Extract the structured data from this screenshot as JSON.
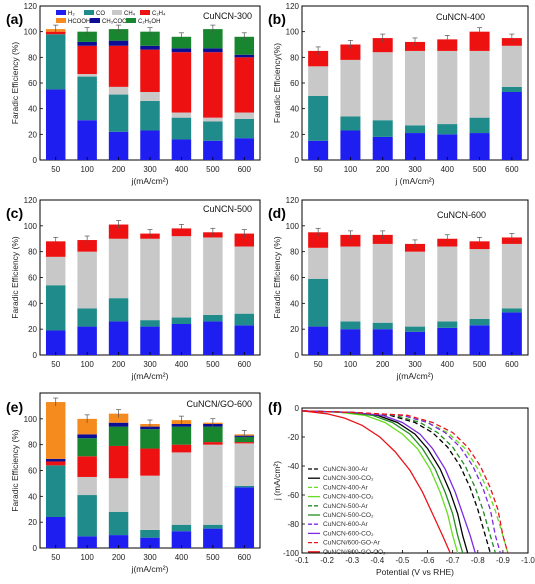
{
  "colors": {
    "H2": "#1e1ef0",
    "CO": "#1f8b8b",
    "CH4": "#c8c8c8",
    "C2H4": "#ee1111",
    "HCOOH": "#f58a1e",
    "CH3COOH": "#0d0d96",
    "C2H5OH": "#18862e"
  },
  "legend_products": [
    {
      "key": "H2",
      "label": "H₂"
    },
    {
      "key": "CO",
      "label": "CO"
    },
    {
      "key": "CH4",
      "label": "CH₄"
    },
    {
      "key": "C2H4",
      "label": "C₂H₄"
    },
    {
      "key": "HCOOH",
      "label": "HCOOH"
    },
    {
      "key": "CH3COOH",
      "label": "CH₃COOH"
    },
    {
      "key": "C2H5OH",
      "label": "C₂H₅OH"
    }
  ],
  "chart_data": [
    {
      "panel": "(a)",
      "title": "CuNCN-300",
      "type": "bar",
      "stacked": true,
      "categories": [
        "50",
        "100",
        "200",
        "300",
        "400",
        "500",
        "600"
      ],
      "xlabel": "j(mA/cm²)",
      "ylabel": "Faradic Efficiency (%)",
      "ylim": [
        0,
        120
      ],
      "yticks": [
        0,
        20,
        40,
        60,
        80,
        100,
        120
      ],
      "series": [
        {
          "name": "H₂",
          "key": "H2",
          "values": [
            55,
            31,
            22,
            23,
            16,
            15,
            17
          ]
        },
        {
          "name": "CO",
          "key": "CO",
          "values": [
            43,
            34,
            29,
            23,
            17,
            15,
            15
          ]
        },
        {
          "name": "CH₄",
          "key": "CH4",
          "values": [
            0,
            2,
            6,
            7,
            4,
            3,
            5
          ]
        },
        {
          "name": "C₂H₄",
          "key": "C2H4",
          "values": [
            2,
            22,
            32,
            33,
            47,
            51,
            43
          ]
        },
        {
          "name": "HCOOH",
          "key": "HCOOH",
          "values": [
            2,
            0,
            0,
            0,
            0,
            0,
            0
          ]
        },
        {
          "name": "CH₃COOH",
          "key": "CH3COOH",
          "values": [
            0,
            3,
            4,
            3,
            3,
            3,
            2
          ]
        },
        {
          "name": "C₂H₅OH",
          "key": "C2H5OH",
          "values": [
            0,
            8,
            9,
            11,
            9,
            15,
            14
          ]
        }
      ]
    },
    {
      "panel": "(b)",
      "title": "CuNCN-400",
      "type": "bar",
      "stacked": true,
      "categories": [
        "50",
        "100",
        "200",
        "300",
        "400",
        "500",
        "600"
      ],
      "xlabel": "j (mA/cm²)",
      "ylabel": "Faradic Efficiency(%)",
      "ylim": [
        0,
        120
      ],
      "yticks": [
        0,
        20,
        40,
        60,
        80,
        100,
        120
      ],
      "series": [
        {
          "name": "H₂",
          "key": "H2",
          "values": [
            15,
            23,
            18,
            21,
            20,
            21,
            53
          ]
        },
        {
          "name": "CO",
          "key": "CO",
          "values": [
            35,
            11,
            13,
            6,
            8,
            12,
            4
          ]
        },
        {
          "name": "CH₄",
          "key": "CH4",
          "values": [
            23,
            44,
            53,
            58,
            57,
            52,
            32
          ]
        },
        {
          "name": "C₂H₄",
          "key": "C2H4",
          "values": [
            12,
            12,
            11,
            7,
            9,
            15,
            6
          ]
        }
      ]
    },
    {
      "panel": "(c)",
      "title": "CuNCN-500",
      "type": "bar",
      "stacked": true,
      "categories": [
        "50",
        "100",
        "200",
        "300",
        "400",
        "500",
        "600"
      ],
      "xlabel": "j(mA/cm²)",
      "ylabel": "Faradic Efficiency (%)",
      "ylim": [
        0,
        120
      ],
      "yticks": [
        0,
        20,
        40,
        60,
        80,
        100,
        120
      ],
      "series": [
        {
          "name": "H₂",
          "key": "H2",
          "values": [
            19,
            22,
            26,
            22,
            24,
            26,
            23
          ]
        },
        {
          "name": "CO",
          "key": "CO",
          "values": [
            35,
            14,
            18,
            5,
            5,
            5,
            9
          ]
        },
        {
          "name": "CH₄",
          "key": "CH4",
          "values": [
            22,
            44,
            46,
            63,
            63,
            60,
            52
          ]
        },
        {
          "name": "C₂H₄",
          "key": "C2H4",
          "values": [
            12,
            9,
            11,
            4,
            6,
            4,
            10
          ]
        }
      ]
    },
    {
      "panel": "(d)",
      "title": "CuNCN-600",
      "type": "bar",
      "stacked": true,
      "categories": [
        "50",
        "100",
        "200",
        "300",
        "400",
        "500",
        "600"
      ],
      "xlabel": "j(mA/cm²)",
      "ylabel": "Faradic Efficiency (%)",
      "ylim": [
        0,
        120
      ],
      "yticks": [
        0,
        20,
        40,
        60,
        80,
        100,
        120
      ],
      "series": [
        {
          "name": "H₂",
          "key": "H2",
          "values": [
            22,
            20,
            20,
            18,
            21,
            23,
            33
          ]
        },
        {
          "name": "CO",
          "key": "CO",
          "values": [
            37,
            6,
            5,
            4,
            5,
            5,
            3
          ]
        },
        {
          "name": "CH₄",
          "key": "CH4",
          "values": [
            24,
            58,
            61,
            58,
            58,
            54,
            50
          ]
        },
        {
          "name": "C₂H₄",
          "key": "C2H4",
          "values": [
            12,
            9,
            7,
            6,
            6,
            6,
            5
          ]
        }
      ]
    },
    {
      "panel": "(e)",
      "title": "CuNCN/GO-600",
      "type": "bar",
      "stacked": true,
      "categories": [
        "50",
        "100",
        "200",
        "300",
        "400",
        "500",
        "600"
      ],
      "xlabel": "j(mA/cm²)",
      "ylabel": "Faradic Efficiency (%)",
      "ylim": [
        0,
        120
      ],
      "yticks": [
        0,
        20,
        40,
        60,
        80,
        100
      ],
      "series": [
        {
          "name": "H₂",
          "key": "H2",
          "values": [
            24,
            9,
            10,
            8,
            13,
            15,
            47
          ]
        },
        {
          "name": "CO",
          "key": "CO",
          "values": [
            40,
            32,
            18,
            6,
            5,
            3,
            1
          ]
        },
        {
          "name": "CH₄",
          "key": "CH4",
          "values": [
            0,
            14,
            26,
            42,
            56,
            62,
            33
          ]
        },
        {
          "name": "C₂H₄",
          "key": "C2H4",
          "values": [
            3,
            16,
            25,
            21,
            6,
            2,
            1
          ]
        },
        {
          "name": "C₂H₅OH",
          "key": "C2H5OH",
          "values": [
            0,
            14,
            15,
            15,
            14,
            12,
            4
          ]
        },
        {
          "name": "CH₃COOH",
          "key": "CH3COOH",
          "values": [
            2,
            3,
            3,
            2,
            2,
            2,
            1
          ]
        },
        {
          "name": "HCOOH",
          "key": "HCOOH",
          "values": [
            44,
            12,
            7,
            2,
            3,
            1,
            1
          ]
        }
      ]
    },
    {
      "panel": "(f)",
      "type": "line",
      "xlabel": "Potential (V vs RHE)",
      "ylabel": "j (mA/cm²)",
      "xlim": [
        -0.1,
        -1.0
      ],
      "ylim": [
        -100,
        0
      ],
      "xticks": [
        -0.1,
        -0.2,
        -0.3,
        -0.4,
        -0.5,
        -0.6,
        -0.7,
        -0.8,
        -0.9,
        -1.0
      ],
      "xtick_labels": [
        "-0.1",
        "-0.2",
        "-0.3",
        "-0.4",
        "-0.5",
        "-0.6",
        "-0.7",
        "-0.8",
        "-0.9",
        "-1.0"
      ],
      "yticks": [
        0,
        -20,
        -40,
        -60,
        -80,
        -100
      ],
      "series": [
        {
          "name": "CuNCN-300-Ar",
          "color": "#000000",
          "dash": true,
          "x": [
            -0.1,
            -0.3,
            -0.45,
            -0.55,
            -0.62,
            -0.68,
            -0.73,
            -0.77,
            -0.8,
            -0.83,
            -0.85
          ],
          "y": [
            -2,
            -3,
            -5,
            -10,
            -17,
            -27,
            -40,
            -55,
            -70,
            -88,
            -100
          ]
        },
        {
          "name": "CuNCN-300-CO₂",
          "color": "#000000",
          "dash": false,
          "x": [
            -0.1,
            -0.3,
            -0.4,
            -0.48,
            -0.55,
            -0.6,
            -0.65,
            -0.69,
            -0.72,
            -0.74,
            -0.76
          ],
          "y": [
            -2,
            -3,
            -5,
            -10,
            -18,
            -28,
            -42,
            -58,
            -73,
            -88,
            -100
          ]
        },
        {
          "name": "CuNCN-400-Ar",
          "color": "#66dd22",
          "dash": true,
          "x": [
            -0.1,
            -0.3,
            -0.5,
            -0.6,
            -0.68,
            -0.75,
            -0.8,
            -0.84,
            -0.87,
            -0.9,
            -0.92
          ],
          "y": [
            -2,
            -3,
            -5,
            -10,
            -17,
            -28,
            -42,
            -57,
            -71,
            -88,
            -100
          ]
        },
        {
          "name": "CuNCN-400-CO₂",
          "color": "#66dd22",
          "dash": false,
          "x": [
            -0.1,
            -0.25,
            -0.35,
            -0.43,
            -0.5,
            -0.56,
            -0.61,
            -0.65,
            -0.68,
            -0.7,
            -0.72
          ],
          "y": [
            -2,
            -3,
            -5,
            -10,
            -18,
            -28,
            -42,
            -58,
            -73,
            -88,
            -100
          ]
        },
        {
          "name": "CuNCN-500-Ar",
          "color": "#228b22",
          "dash": true,
          "x": [
            -0.1,
            -0.3,
            -0.47,
            -0.57,
            -0.64,
            -0.7,
            -0.75,
            -0.79,
            -0.82,
            -0.85,
            -0.87
          ],
          "y": [
            -2,
            -3,
            -5,
            -10,
            -17,
            -27,
            -40,
            -55,
            -70,
            -88,
            -100
          ]
        },
        {
          "name": "CuNCN-500-CO₂",
          "color": "#228b22",
          "dash": false,
          "x": [
            -0.1,
            -0.28,
            -0.38,
            -0.46,
            -0.53,
            -0.58,
            -0.63,
            -0.67,
            -0.7,
            -0.72,
            -0.74
          ],
          "y": [
            -2,
            -3,
            -5,
            -10,
            -18,
            -28,
            -42,
            -58,
            -73,
            -88,
            -100
          ]
        },
        {
          "name": "CuNCN-600-Ar",
          "color": "#7b2be0",
          "dash": true,
          "x": [
            -0.1,
            -0.3,
            -0.5,
            -0.6,
            -0.67,
            -0.73,
            -0.78,
            -0.82,
            -0.85,
            -0.87,
            -0.89
          ],
          "y": [
            -2,
            -3,
            -5,
            -10,
            -17,
            -27,
            -40,
            -55,
            -70,
            -88,
            -100
          ]
        },
        {
          "name": "CuNCN-600-CO₂",
          "color": "#7b2be0",
          "dash": false,
          "x": [
            -0.1,
            -0.3,
            -0.42,
            -0.5,
            -0.57,
            -0.62,
            -0.67,
            -0.71,
            -0.74,
            -0.77,
            -0.79
          ],
          "y": [
            -2,
            -3,
            -5,
            -10,
            -18,
            -28,
            -42,
            -58,
            -73,
            -88,
            -100
          ]
        },
        {
          "name": "CuNCN/600-GO-Ar",
          "color": "#e8151a",
          "dash": true,
          "x": [
            -0.1,
            -0.3,
            -0.52,
            -0.62,
            -0.7,
            -0.76,
            -0.81,
            -0.85,
            -0.88,
            -0.9,
            -0.92
          ],
          "y": [
            -2,
            -3,
            -5,
            -10,
            -17,
            -27,
            -40,
            -55,
            -70,
            -88,
            -100
          ]
        },
        {
          "name": "CuNCN/600-GO-CO₂",
          "color": "#e8151a",
          "dash": false,
          "x": [
            -0.1,
            -0.2,
            -0.27,
            -0.34,
            -0.41,
            -0.47,
            -0.53,
            -0.58,
            -0.62,
            -0.66,
            -0.69
          ],
          "y": [
            -2,
            -4,
            -7,
            -12,
            -20,
            -30,
            -43,
            -58,
            -73,
            -88,
            -100
          ]
        }
      ]
    }
  ]
}
